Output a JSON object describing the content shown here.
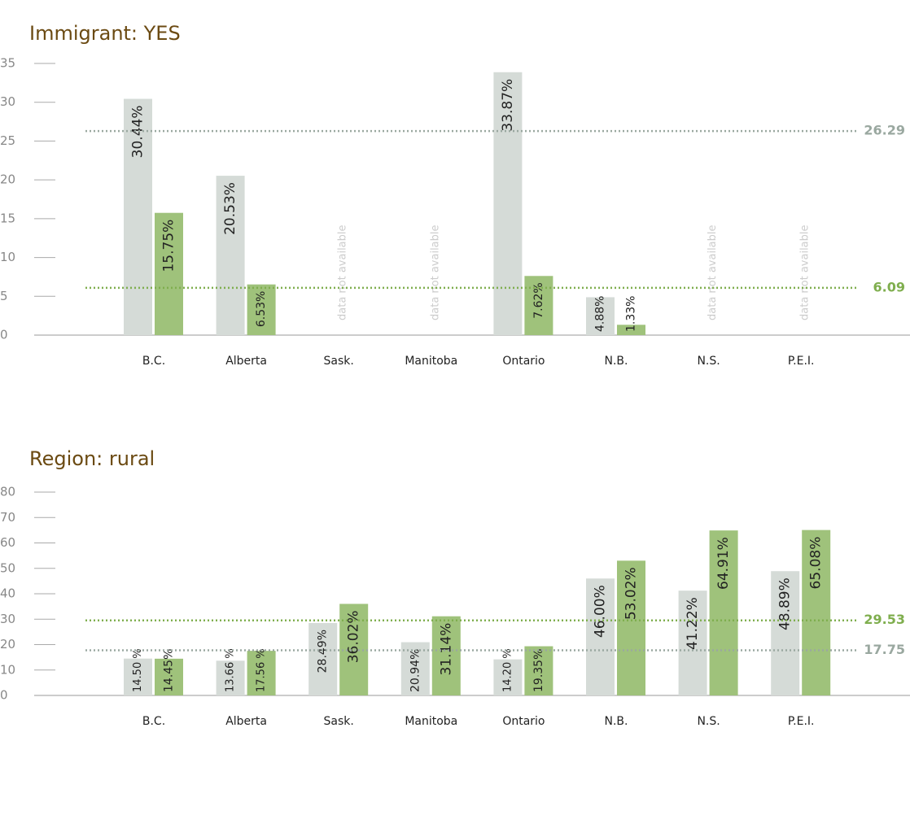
{
  "chart_data": [
    {
      "type": "bar",
      "title": "Immigrant: YES",
      "categories": [
        "B.C.",
        "Alberta",
        "Sask.",
        "Manitoba",
        "Ontario",
        "N.B.",
        "N.S.",
        "P.E.I."
      ],
      "series": [
        {
          "color": "#d5dbd7",
          "values": [
            30.44,
            20.53,
            null,
            null,
            33.87,
            4.88,
            null,
            null
          ],
          "value_labels": [
            "30.44%",
            "20.53%",
            null,
            null,
            "33.87%",
            "4.88%",
            null,
            null
          ]
        },
        {
          "color": "#9fc27b",
          "values": [
            15.75,
            6.53,
            null,
            null,
            7.62,
            1.33,
            null,
            null
          ],
          "value_labels": [
            "15.75%",
            "6.53%",
            null,
            null,
            "7.62%",
            "1.33%",
            null,
            null
          ]
        }
      ],
      "missing_label": "data not available",
      "reference_lines": [
        {
          "value": 26.29,
          "color": "#9aa8a0"
        },
        {
          "value": 6.09,
          "color": "#7fae4e"
        }
      ],
      "ylim": [
        0,
        35
      ],
      "yticks": [
        0,
        5,
        10,
        15,
        20,
        25,
        30,
        35
      ]
    },
    {
      "type": "bar",
      "title": "Region: rural",
      "categories": [
        "B.C.",
        "Alberta",
        "Sask.",
        "Manitoba",
        "Ontario",
        "N.B.",
        "N.S.",
        "P.E.I."
      ],
      "series": [
        {
          "color": "#d5dbd7",
          "values": [
            14.5,
            13.66,
            28.49,
            20.94,
            14.2,
            46.0,
            41.22,
            48.89
          ],
          "value_labels": [
            "14.50 %",
            "13.66 %",
            "28.49%",
            "20.94%",
            "14.20 %",
            "46.00%",
            "41.22%",
            "48.89%"
          ]
        },
        {
          "color": "#9fc27b",
          "values": [
            14.45,
            17.56,
            36.02,
            31.14,
            19.35,
            53.02,
            64.91,
            65.08
          ],
          "value_labels": [
            "14.45%",
            "17.56 %",
            "36.02%",
            "31.14%",
            "19.35%",
            "53.02%",
            "64.91%",
            "65.08%"
          ]
        }
      ],
      "reference_lines": [
        {
          "value": 29.53,
          "color": "#7fae4e"
        },
        {
          "value": 17.75,
          "color": "#9aa8a0"
        }
      ],
      "ylim": [
        0,
        80
      ],
      "yticks": [
        0,
        10,
        20,
        30,
        40,
        50,
        60,
        70,
        80
      ]
    }
  ]
}
